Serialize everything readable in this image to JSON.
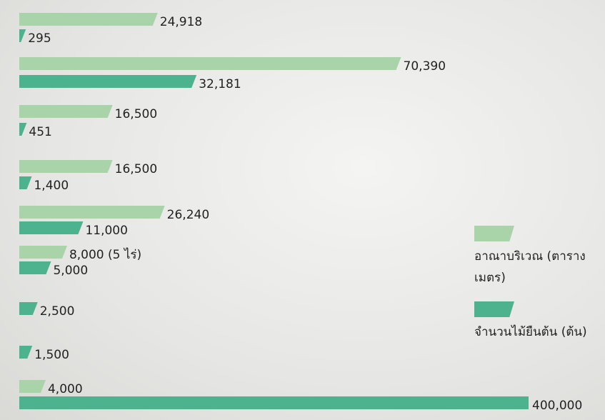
{
  "chart_data": {
    "type": "bar",
    "orientation": "horizontal",
    "categories": [
      null,
      null,
      null,
      null,
      null,
      null,
      null,
      null,
      null
    ],
    "xlim": [
      0,
      95000
    ],
    "series": [
      {
        "name": "อาณาบริเวณ (ตารางเมตร)",
        "color": "#a9d4aa",
        "values": [
          24918,
          70390,
          16500,
          16500,
          26240,
          8000,
          null,
          null,
          4000
        ],
        "value_labels": [
          "24,918",
          "70,390",
          "16,500",
          "16,500",
          "26,240",
          "8,000 (5 ไร่)",
          null,
          null,
          "4,000"
        ]
      },
      {
        "name": "จำนวนไม้ยืนต้น (ต้น)",
        "color": "#4cb38e",
        "values": [
          295,
          32181,
          451,
          1400,
          11000,
          5000,
          2500,
          1500,
          400000
        ],
        "value_labels": [
          "295",
          "32,181",
          "451",
          "1,400",
          "11,000",
          "5,000",
          "2,500",
          "1,500",
          "400,000"
        ]
      }
    ]
  }
}
